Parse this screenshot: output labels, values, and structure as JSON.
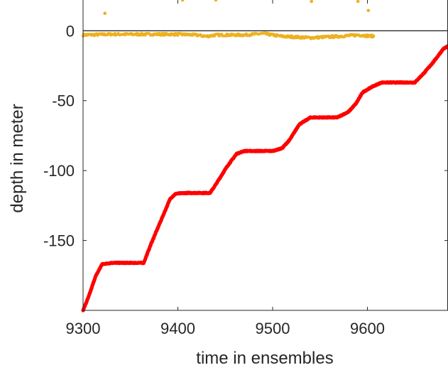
{
  "chart_data": {
    "type": "scatter",
    "title": "",
    "xlabel": "time in ensembles",
    "ylabel": "depth in meter",
    "xlim": [
      9300,
      9685
    ],
    "ylim": [
      -200,
      22
    ],
    "x_ticks": [
      9300,
      9400,
      9500,
      9600
    ],
    "x_tick_labels": [
      "9300",
      "9400",
      "9500",
      "9600"
    ],
    "y_ticks": [
      0,
      -50,
      -100,
      -150
    ],
    "y_tick_labels": [
      "0",
      "-50",
      "-100",
      "-150"
    ],
    "zero_line": 0,
    "grid": false,
    "colors": {
      "red_series": "#ff0000",
      "yellow_series": "#edb120",
      "axis": "#262626"
    },
    "series": [
      {
        "color": "#ff0000",
        "marker": "dot",
        "points": [
          [
            9300,
            -200
          ],
          [
            9306,
            -190
          ],
          [
            9313,
            -176
          ],
          [
            9320,
            -167
          ],
          [
            9330,
            -166
          ],
          [
            9345,
            -166
          ],
          [
            9360,
            -166
          ],
          [
            9364,
            -166
          ],
          [
            9372,
            -152
          ],
          [
            9382,
            -136
          ],
          [
            9392,
            -120
          ],
          [
            9398,
            -116.5
          ],
          [
            9410,
            -116
          ],
          [
            9425,
            -116
          ],
          [
            9434,
            -116
          ],
          [
            9440,
            -110
          ],
          [
            9452,
            -97
          ],
          [
            9462,
            -88
          ],
          [
            9470,
            -86
          ],
          [
            9485,
            -86
          ],
          [
            9500,
            -86
          ],
          [
            9510,
            -84
          ],
          [
            9518,
            -78
          ],
          [
            9528,
            -67
          ],
          [
            9540,
            -62
          ],
          [
            9555,
            -62
          ],
          [
            9568,
            -62
          ],
          [
            9580,
            -58
          ],
          [
            9588,
            -52
          ],
          [
            9595,
            -44
          ],
          [
            9605,
            -40
          ],
          [
            9615,
            -37
          ],
          [
            9630,
            -37
          ],
          [
            9650,
            -37
          ],
          [
            9660,
            -30
          ],
          [
            9670,
            -22
          ],
          [
            9680,
            -13
          ],
          [
            9685,
            -11
          ]
        ]
      },
      {
        "color": "#edb120",
        "marker": "dot",
        "x_range": [
          9300,
          9607
        ],
        "band_level": -3,
        "band_points": [
          [
            9300,
            -3
          ],
          [
            9330,
            -2.5
          ],
          [
            9360,
            -2.5
          ],
          [
            9400,
            -2.5
          ],
          [
            9420,
            -3
          ],
          [
            9430,
            -4
          ],
          [
            9440,
            -3
          ],
          [
            9470,
            -3
          ],
          [
            9490,
            -2
          ],
          [
            9510,
            -4
          ],
          [
            9540,
            -5
          ],
          [
            9570,
            -4
          ],
          [
            9590,
            -3
          ],
          [
            9607,
            -4
          ]
        ],
        "outliers": [
          [
            9323,
            12.5
          ],
          [
            9405,
            22
          ],
          [
            9440,
            22
          ],
          [
            9541,
            21
          ],
          [
            9590,
            21
          ],
          [
            9601,
            14.5
          ]
        ]
      }
    ]
  }
}
